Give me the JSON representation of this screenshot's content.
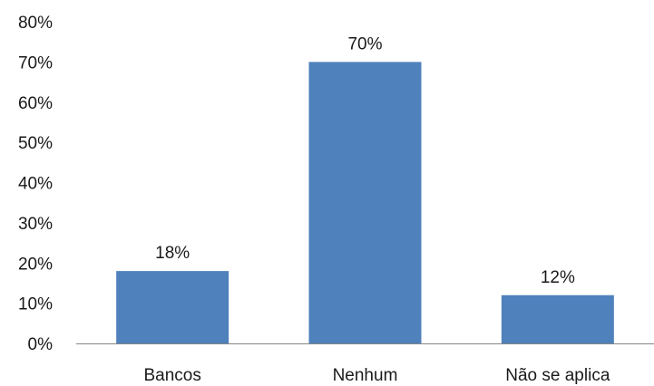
{
  "chart_data": {
    "type": "bar",
    "categories": [
      "Bancos",
      "Nenhum",
      "Não se aplica"
    ],
    "values": [
      18,
      70,
      12
    ],
    "value_labels": [
      "18%",
      "70%",
      "12%"
    ],
    "ylim": [
      0,
      80
    ],
    "yticks": [
      0,
      10,
      20,
      30,
      40,
      50,
      60,
      70,
      80
    ],
    "ytick_labels": [
      "0%",
      "10%",
      "20%",
      "30%",
      "40%",
      "50%",
      "60%",
      "70%",
      "80%"
    ],
    "title": "",
    "xlabel": "",
    "ylabel": "",
    "grid": false,
    "legend": "none",
    "colors": {
      "bar": "#4F81BD",
      "axis": "#868686"
    }
  }
}
